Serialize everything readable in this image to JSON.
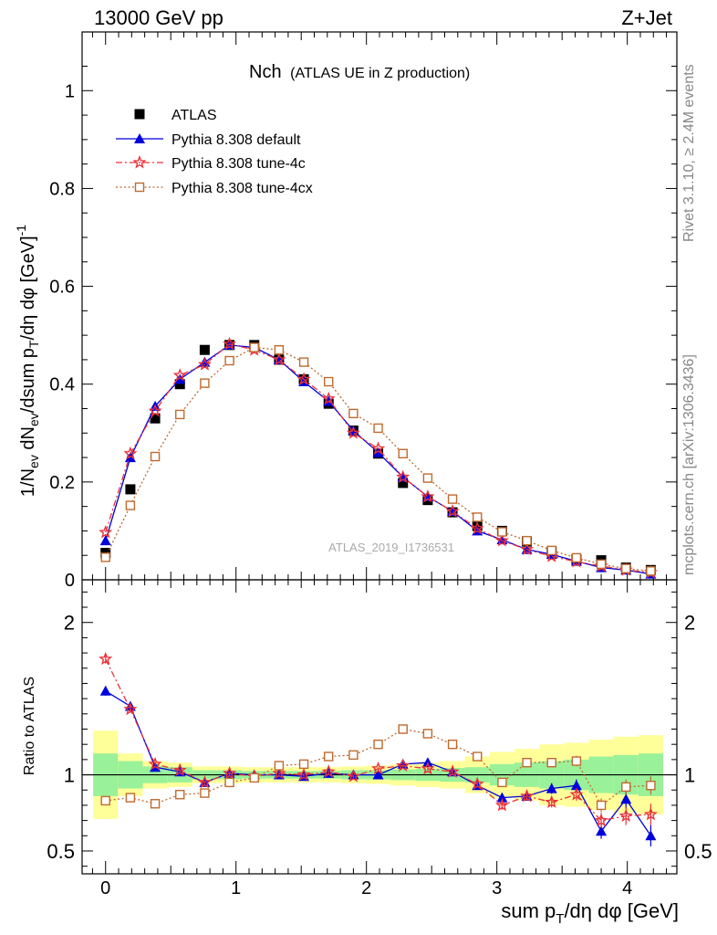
{
  "header": {
    "left": "13000 GeV pp",
    "right": "Z+Jet"
  },
  "plot_title": {
    "main": "Nch",
    "sub": "(ATLAS UE in Z production)"
  },
  "watermark": "ATLAS_2019_I1736531",
  "side_text": {
    "rivet": "Rivet 3.1.10, ≥ 2.4M events",
    "mcplots": "mcplots.cern.ch [arXiv:1306.3436]"
  },
  "colors": {
    "atlas": "#000000",
    "default": "#0000dd",
    "tune4c": "#e8333a",
    "tune4cx": "#c06a2e",
    "band_inner": "#99f199",
    "band_outer": "#ffff99"
  },
  "chart_data": [
    {
      "type": "line",
      "panel": "main",
      "ylabel": "1/N_ev dN_ev/dsum p_T/dη dφ [GeV]^-1",
      "xlabel": "sum p_T/dη dφ [GeV]",
      "xlim": [
        -0.18,
        4.38
      ],
      "ylim": [
        0,
        1.12
      ],
      "x_ticks": [
        "0",
        "1",
        "2",
        "3",
        "4"
      ],
      "y_ticks": [
        "0",
        "0.2",
        "0.4",
        "0.6",
        "0.8",
        "1"
      ],
      "legend_placement": "top-left",
      "x": [
        0.0,
        0.19,
        0.38,
        0.57,
        0.76,
        0.95,
        1.14,
        1.33,
        1.52,
        1.71,
        1.9,
        2.09,
        2.28,
        2.47,
        2.66,
        2.85,
        3.04,
        3.23,
        3.42,
        3.61,
        3.8,
        3.99,
        4.18
      ],
      "series": [
        {
          "name": "ATLAS",
          "key": "atlas",
          "marker": "square",
          "values": [
            0.055,
            0.185,
            0.33,
            0.4,
            0.47,
            0.48,
            0.48,
            0.45,
            0.41,
            0.36,
            0.305,
            0.258,
            0.198,
            0.163,
            0.138,
            0.11,
            0.1,
            0.078,
            0.058,
            0.042,
            0.04,
            0.025,
            0.02
          ]
        },
        {
          "name": "Pythia 8.308 default",
          "key": "default",
          "marker": "triangle",
          "values": [
            0.08,
            0.25,
            0.355,
            0.41,
            0.445,
            0.48,
            0.475,
            0.45,
            0.405,
            0.365,
            0.305,
            0.26,
            0.21,
            0.17,
            0.14,
            0.1,
            0.082,
            0.062,
            0.052,
            0.038,
            0.025,
            0.02,
            0.012
          ]
        },
        {
          "name": "Pythia 8.308 tune-4c",
          "key": "tune4c",
          "marker": "star",
          "values": [
            0.097,
            0.258,
            0.345,
            0.418,
            0.44,
            0.482,
            0.47,
            0.45,
            0.41,
            0.37,
            0.3,
            0.268,
            0.21,
            0.17,
            0.14,
            0.105,
            0.08,
            0.062,
            0.048,
            0.037,
            0.028,
            0.02,
            0.015
          ]
        },
        {
          "name": "Pythia 8.308 tune-4cx",
          "key": "tune4cx",
          "marker": "opensquare",
          "values": [
            0.046,
            0.152,
            0.252,
            0.338,
            0.402,
            0.448,
            0.475,
            0.47,
            0.445,
            0.405,
            0.34,
            0.31,
            0.258,
            0.208,
            0.165,
            0.128,
            0.098,
            0.08,
            0.06,
            0.045,
            0.032,
            0.023,
            0.018
          ]
        }
      ]
    },
    {
      "type": "line",
      "panel": "ratio",
      "ylabel": "Ratio to ATLAS",
      "xlim": [
        -0.18,
        4.38
      ],
      "ylim": [
        0.35,
        2.28
      ],
      "y_ticks": [
        "0.5",
        "1",
        "2"
      ],
      "x": [
        0.0,
        0.19,
        0.38,
        0.57,
        0.76,
        0.95,
        1.14,
        1.33,
        1.52,
        1.71,
        1.9,
        2.09,
        2.28,
        2.47,
        2.66,
        2.85,
        3.04,
        3.23,
        3.42,
        3.61,
        3.8,
        3.99,
        4.18
      ],
      "band_inner": [
        0.14,
        0.09,
        0.055,
        0.05,
        0.03,
        0.03,
        0.025,
        0.025,
        0.025,
        0.025,
        0.03,
        0.03,
        0.035,
        0.04,
        0.045,
        0.05,
        0.07,
        0.08,
        0.09,
        0.1,
        0.12,
        0.13,
        0.14
      ],
      "band_outer": [
        0.29,
        0.14,
        0.09,
        0.08,
        0.055,
        0.055,
        0.05,
        0.05,
        0.05,
        0.05,
        0.055,
        0.06,
        0.07,
        0.08,
        0.09,
        0.12,
        0.15,
        0.17,
        0.2,
        0.21,
        0.23,
        0.25,
        0.26
      ],
      "series": [
        {
          "name": "Pythia 8.308 default",
          "key": "default",
          "marker": "triangle",
          "values": [
            1.55,
            1.45,
            1.05,
            1.02,
            0.95,
            1.01,
            1.0,
            1.0,
            0.99,
            1.01,
            1.0,
            1.0,
            1.07,
            1.08,
            1.02,
            0.93,
            0.85,
            0.86,
            0.91,
            0.93,
            0.63,
            0.84,
            0.6
          ],
          "errors": [
            0.03,
            0.02,
            0.01,
            0.01,
            0.01,
            0.01,
            0.01,
            0.01,
            0.01,
            0.01,
            0.01,
            0.01,
            0.01,
            0.01,
            0.015,
            0.02,
            0.03,
            0.03,
            0.035,
            0.04,
            0.05,
            0.06,
            0.07
          ]
        },
        {
          "name": "Pythia 8.308 tune-4c",
          "key": "tune4c",
          "marker": "star",
          "values": [
            1.76,
            1.43,
            1.07,
            1.03,
            0.95,
            1.01,
            0.99,
            1.01,
            1.0,
            1.02,
            0.99,
            1.04,
            1.06,
            1.04,
            1.02,
            0.94,
            0.8,
            0.86,
            0.82,
            0.87,
            0.7,
            0.73,
            0.74
          ],
          "errors": [
            0.03,
            0.02,
            0.01,
            0.01,
            0.01,
            0.01,
            0.01,
            0.01,
            0.01,
            0.01,
            0.01,
            0.01,
            0.01,
            0.01,
            0.015,
            0.02,
            0.03,
            0.03,
            0.035,
            0.04,
            0.05,
            0.06,
            0.07
          ]
        },
        {
          "name": "Pythia 8.308 tune-4cx",
          "key": "tune4cx",
          "marker": "opensquare",
          "values": [
            0.83,
            0.85,
            0.81,
            0.87,
            0.88,
            0.95,
            0.98,
            1.06,
            1.07,
            1.12,
            1.13,
            1.2,
            1.3,
            1.27,
            1.2,
            1.12,
            0.95,
            1.08,
            1.08,
            1.09,
            0.8,
            0.92,
            0.93
          ],
          "errors": [
            0.02,
            0.015,
            0.01,
            0.01,
            0.01,
            0.01,
            0.01,
            0.01,
            0.01,
            0.01,
            0.01,
            0.01,
            0.01,
            0.01,
            0.015,
            0.02,
            0.025,
            0.03,
            0.03,
            0.035,
            0.045,
            0.05,
            0.06
          ]
        }
      ]
    }
  ]
}
